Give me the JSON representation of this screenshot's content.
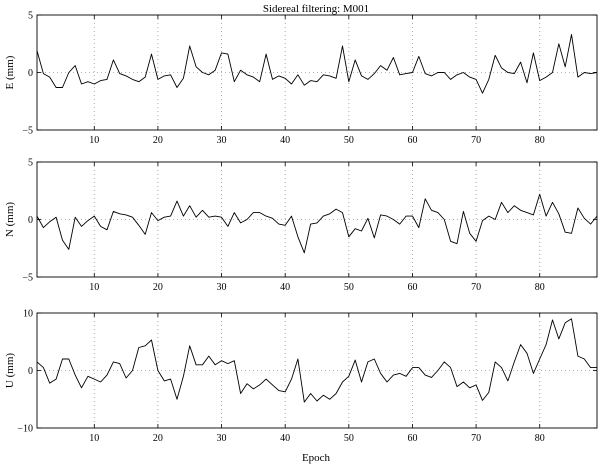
{
  "chart_data": [
    {
      "type": "line",
      "title": "Sidereal filtering: M001",
      "ylabel": "E (mm)",
      "xlabel": "",
      "xlim": [
        1,
        89
      ],
      "ylim": [
        -5,
        5
      ],
      "xticks": [
        10,
        20,
        30,
        40,
        50,
        60,
        70,
        80
      ],
      "yticks": [
        -5,
        0,
        5
      ],
      "ytick_labels": [
        "−5",
        "0",
        "5"
      ],
      "grid": true,
      "x": [
        1,
        2,
        3,
        4,
        5,
        6,
        7,
        8,
        9,
        10,
        11,
        12,
        13,
        14,
        15,
        16,
        17,
        18,
        19,
        20,
        21,
        22,
        23,
        24,
        25,
        26,
        27,
        28,
        29,
        30,
        31,
        32,
        33,
        34,
        35,
        36,
        37,
        38,
        39,
        40,
        41,
        42,
        43,
        44,
        45,
        46,
        47,
        48,
        49,
        50,
        51,
        52,
        53,
        54,
        55,
        56,
        57,
        58,
        59,
        60,
        61,
        62,
        63,
        64,
        65,
        66,
        67,
        68,
        69,
        70,
        71,
        72,
        73,
        74,
        75,
        76,
        77,
        78,
        79,
        80,
        81,
        82,
        83,
        84,
        85,
        86,
        87,
        88,
        89
      ],
      "values": [
        1.9,
        -0.1,
        -0.4,
        -1.3,
        -1.3,
        0.0,
        0.6,
        -1.0,
        -0.8,
        -1.0,
        -0.7,
        -0.6,
        1.1,
        -0.1,
        -0.3,
        -0.6,
        -0.8,
        -0.4,
        1.6,
        -0.6,
        -0.3,
        -0.2,
        -1.3,
        -0.5,
        2.3,
        0.5,
        0.0,
        -0.2,
        0.2,
        1.7,
        1.6,
        -0.8,
        0.2,
        -0.2,
        -0.4,
        -0.8,
        1.6,
        -0.6,
        -0.3,
        -0.5,
        -1.0,
        -0.2,
        -1.1,
        -0.7,
        -0.8,
        -0.2,
        -0.3,
        -0.5,
        2.3,
        -0.8,
        1.1,
        -0.3,
        -0.6,
        -0.1,
        0.6,
        0.2,
        1.3,
        -0.2,
        -0.1,
        0.0,
        1.4,
        -0.1,
        -0.3,
        0.0,
        0.0,
        -0.6,
        -0.2,
        0.0,
        -0.4,
        -0.6,
        -1.8,
        -0.6,
        1.5,
        0.4,
        0.0,
        -0.1,
        0.9,
        -0.9,
        1.7,
        -0.7,
        -0.4,
        0.0,
        2.5,
        0.5,
        3.3,
        -0.4,
        0.0,
        -0.1,
        0.0
      ]
    },
    {
      "type": "line",
      "ylabel": "N (mm)",
      "xlabel": "",
      "xlim": [
        1,
        89
      ],
      "ylim": [
        -5,
        5
      ],
      "xticks": [
        10,
        20,
        30,
        40,
        50,
        60,
        70,
        80
      ],
      "yticks": [
        -5,
        0,
        5
      ],
      "ytick_labels": [
        "−5",
        "0",
        "5"
      ],
      "grid": true,
      "x": [
        1,
        2,
        3,
        4,
        5,
        6,
        7,
        8,
        9,
        10,
        11,
        12,
        13,
        14,
        15,
        16,
        17,
        18,
        19,
        20,
        21,
        22,
        23,
        24,
        25,
        26,
        27,
        28,
        29,
        30,
        31,
        32,
        33,
        34,
        35,
        36,
        37,
        38,
        39,
        40,
        41,
        42,
        43,
        44,
        45,
        46,
        47,
        48,
        49,
        50,
        51,
        52,
        53,
        54,
        55,
        56,
        57,
        58,
        59,
        60,
        61,
        62,
        63,
        64,
        65,
        66,
        67,
        68,
        69,
        70,
        71,
        72,
        73,
        74,
        75,
        76,
        77,
        78,
        79,
        80,
        81,
        82,
        83,
        84,
        85,
        86,
        87,
        88,
        89
      ],
      "values": [
        0.3,
        -0.7,
        -0.2,
        0.2,
        -1.8,
        -2.6,
        0.2,
        -0.6,
        -0.1,
        0.3,
        -0.6,
        -0.9,
        0.7,
        0.5,
        0.4,
        0.2,
        -0.5,
        -1.3,
        0.6,
        -0.1,
        0.2,
        0.3,
        1.6,
        0.3,
        1.2,
        0.2,
        0.8,
        0.2,
        0.3,
        0.2,
        -0.6,
        0.6,
        -0.3,
        0.0,
        0.6,
        0.6,
        0.3,
        0.1,
        -0.4,
        -0.5,
        0.3,
        -1.5,
        -2.9,
        -0.4,
        -0.3,
        0.3,
        0.5,
        0.9,
        0.6,
        -1.5,
        -0.8,
        -1.0,
        0.1,
        -1.6,
        0.4,
        0.3,
        0.0,
        -0.4,
        0.3,
        0.3,
        -0.7,
        1.8,
        0.8,
        0.6,
        0.0,
        -1.9,
        -2.1,
        0.7,
        -1.2,
        -1.9,
        -0.1,
        0.3,
        0.0,
        1.5,
        0.6,
        1.2,
        0.8,
        0.6,
        0.4,
        2.2,
        0.3,
        1.5,
        0.5,
        -1.1,
        -1.2,
        1.0,
        0.1,
        -0.4,
        0.3
      ]
    },
    {
      "type": "line",
      "ylabel": "U (mm)",
      "xlabel": "Epoch",
      "xlim": [
        1,
        89
      ],
      "ylim": [
        -10,
        10
      ],
      "xticks": [
        10,
        20,
        30,
        40,
        50,
        60,
        70,
        80
      ],
      "yticks": [
        -10,
        0,
        10
      ],
      "ytick_labels": [
        "−10",
        "0",
        "10"
      ],
      "grid": true,
      "x": [
        1,
        2,
        3,
        4,
        5,
        6,
        7,
        8,
        9,
        10,
        11,
        12,
        13,
        14,
        15,
        16,
        17,
        18,
        19,
        20,
        21,
        22,
        23,
        24,
        25,
        26,
        27,
        28,
        29,
        30,
        31,
        32,
        33,
        34,
        35,
        36,
        37,
        38,
        39,
        40,
        41,
        42,
        43,
        44,
        45,
        46,
        47,
        48,
        49,
        50,
        51,
        52,
        53,
        54,
        55,
        56,
        57,
        58,
        59,
        60,
        61,
        62,
        63,
        64,
        65,
        66,
        67,
        68,
        69,
        70,
        71,
        72,
        73,
        74,
        75,
        76,
        77,
        78,
        79,
        80,
        81,
        82,
        83,
        84,
        85,
        86,
        87,
        88,
        89
      ],
      "values": [
        1.5,
        0.5,
        -2.2,
        -1.5,
        2.0,
        2.0,
        -0.8,
        -3.0,
        -1.0,
        -1.5,
        -2.0,
        -0.8,
        1.5,
        1.2,
        -1.3,
        0.0,
        4.0,
        4.3,
        5.3,
        0.0,
        -1.8,
        -1.5,
        -5.0,
        -1.0,
        4.3,
        1.0,
        1.0,
        2.5,
        1.0,
        1.7,
        1.2,
        1.7,
        -4.0,
        -2.3,
        -3.2,
        -2.5,
        -1.5,
        -2.5,
        -3.5,
        -3.7,
        -1.5,
        2.0,
        -5.5,
        -4.0,
        -5.3,
        -4.3,
        -5.0,
        -4.0,
        -2.0,
        -1.0,
        1.8,
        -2.0,
        1.5,
        2.0,
        -0.5,
        -2.0,
        -0.8,
        -0.5,
        -1.0,
        0.5,
        0.5,
        -0.8,
        -1.2,
        0.0,
        1.5,
        0.5,
        -2.8,
        -2.0,
        -3.0,
        -2.5,
        -5.2,
        -3.8,
        1.5,
        0.5,
        -1.8,
        1.5,
        4.5,
        3.0,
        -0.5,
        2.0,
        4.5,
        8.8,
        5.5,
        8.3,
        9.0,
        2.5,
        2.0,
        0.5,
        0.5
      ]
    }
  ]
}
